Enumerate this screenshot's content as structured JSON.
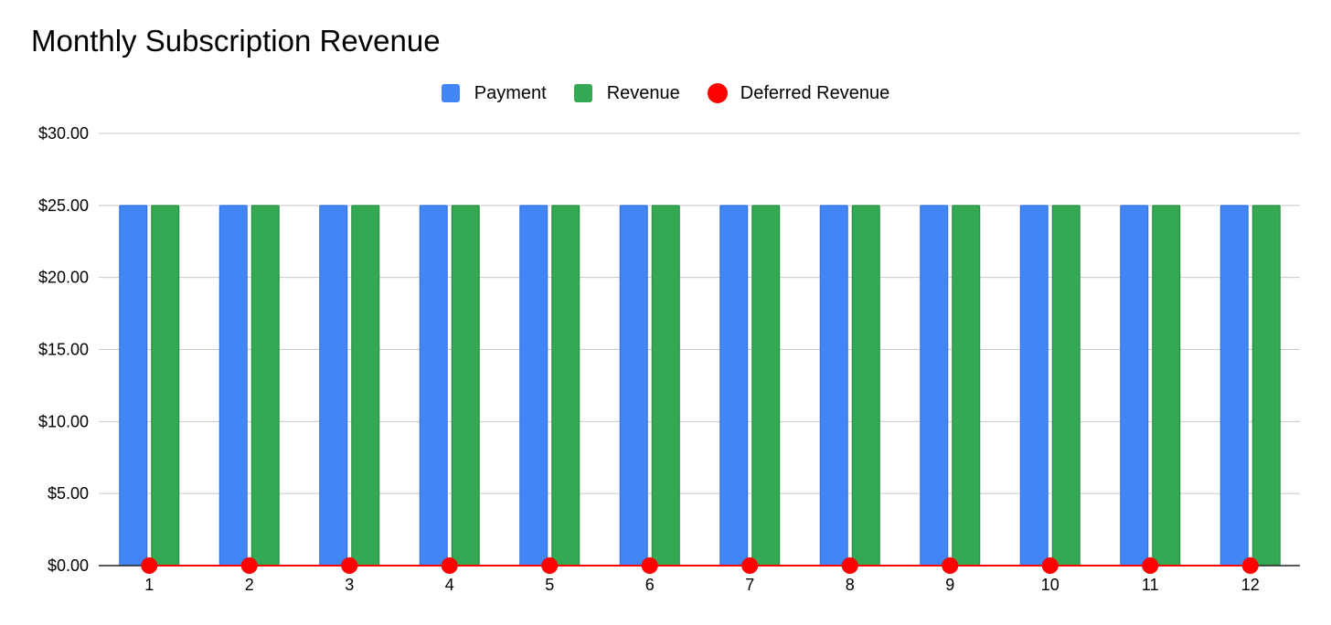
{
  "chart_data": {
    "type": "bar",
    "title": "Monthly Subscription Revenue",
    "xlabel": "",
    "ylabel": "",
    "categories": [
      "1",
      "2",
      "3",
      "4",
      "5",
      "6",
      "7",
      "8",
      "9",
      "10",
      "11",
      "12"
    ],
    "series": [
      {
        "name": "Payment",
        "type": "bar",
        "color": "#4285F4",
        "values": [
          25,
          25,
          25,
          25,
          25,
          25,
          25,
          25,
          25,
          25,
          25,
          25
        ]
      },
      {
        "name": "Revenue",
        "type": "bar",
        "color": "#34A853",
        "values": [
          25,
          25,
          25,
          25,
          25,
          25,
          25,
          25,
          25,
          25,
          25,
          25
        ]
      },
      {
        "name": "Deferred Revenue",
        "type": "line",
        "color": "#FF0000",
        "values": [
          0,
          0,
          0,
          0,
          0,
          0,
          0,
          0,
          0,
          0,
          0,
          0
        ]
      }
    ],
    "ylim": [
      0,
      30
    ],
    "yticks": [
      0,
      5,
      10,
      15,
      20,
      25,
      30
    ],
    "ytick_labels": [
      "$0.00",
      "$5.00",
      "$10.00",
      "$15.00",
      "$20.00",
      "$25.00",
      "$30.00"
    ],
    "grid": true,
    "legend_position": "top-center"
  }
}
